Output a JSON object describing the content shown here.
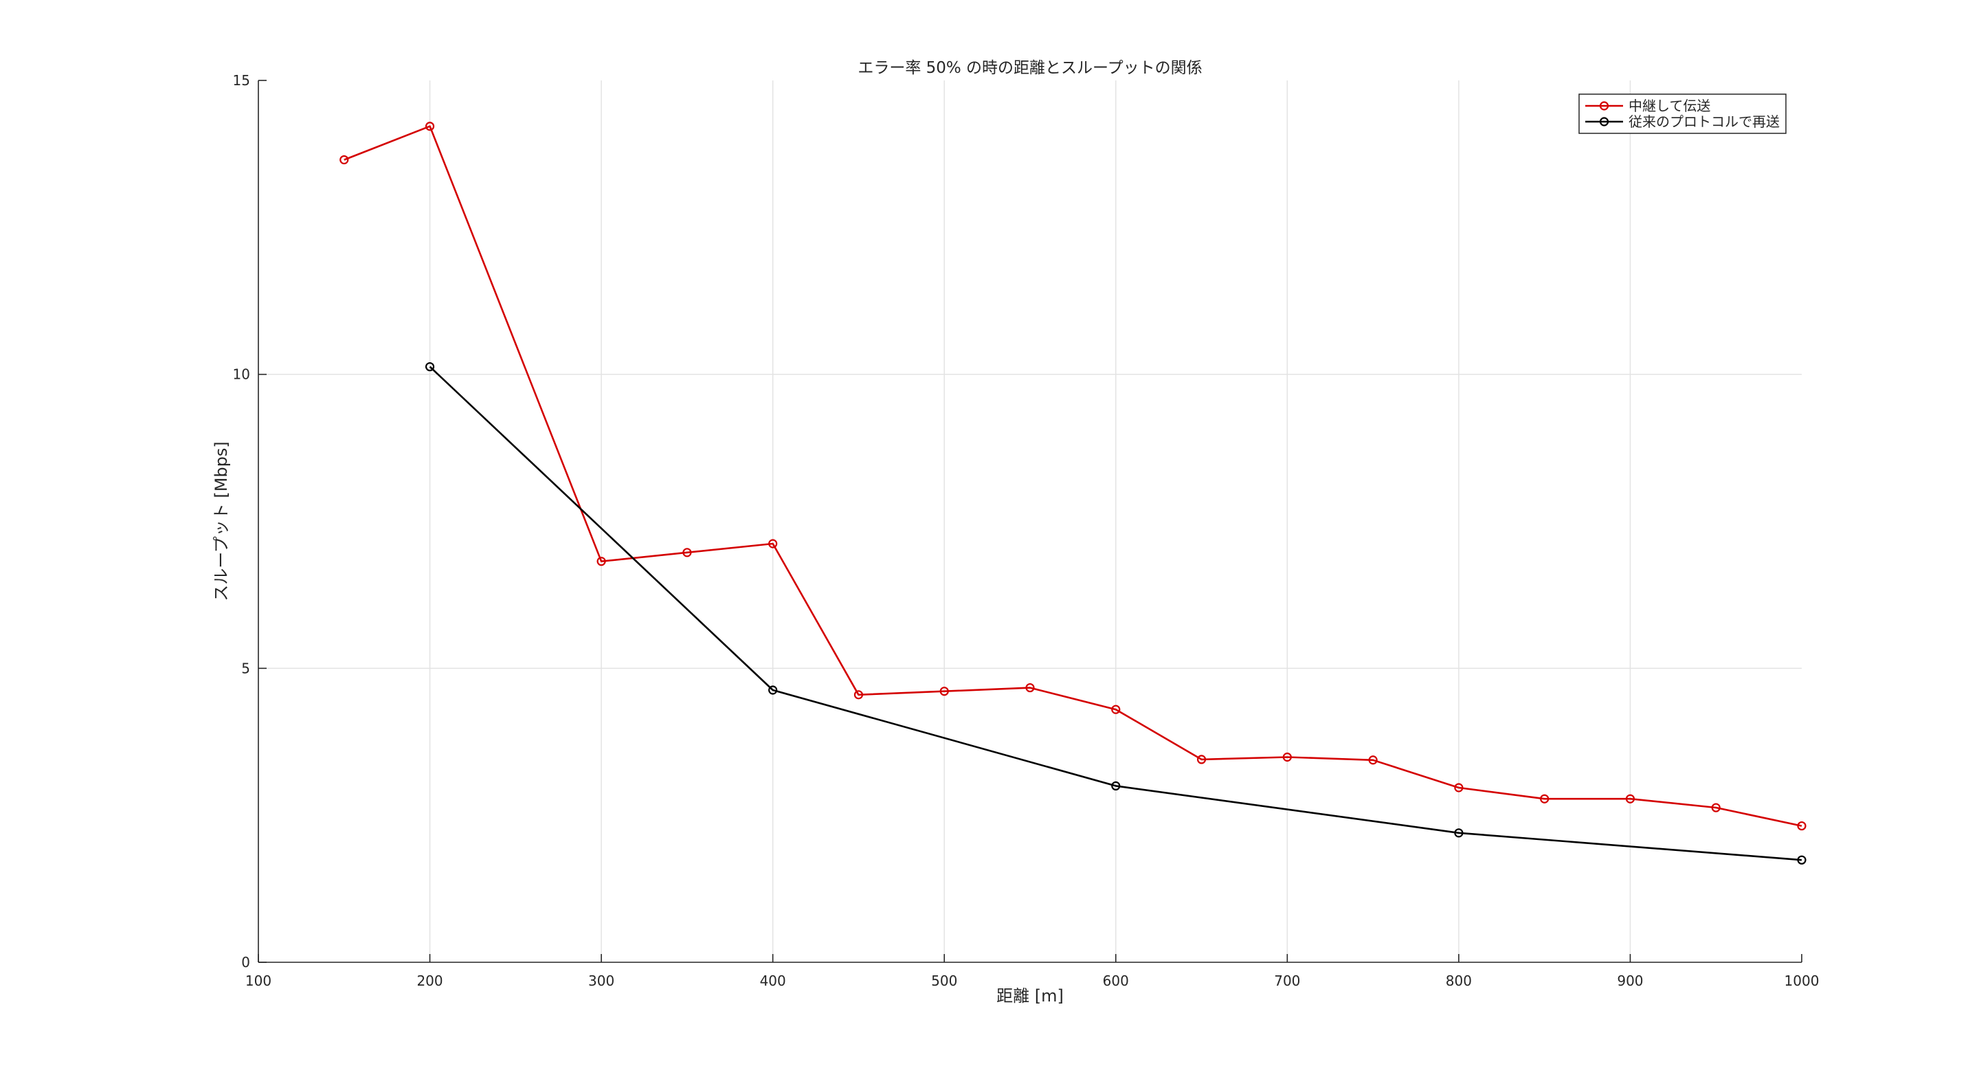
{
  "chart_data": {
    "type": "line",
    "title": "エラー率 50% の時の距離とスループットの関係",
    "xlabel": "距離 [m]",
    "ylabel": "スループット [Mbps]",
    "xlim": [
      100,
      1000
    ],
    "ylim": [
      0,
      15
    ],
    "xticks": [
      100,
      200,
      300,
      400,
      500,
      600,
      700,
      800,
      900,
      1000
    ],
    "yticks": [
      0,
      5,
      10,
      15
    ],
    "grid": true,
    "legend_position": "top-right",
    "series": [
      {
        "name": "中継して伝送",
        "color": "#d40000",
        "marker": "circle",
        "x": [
          150,
          200,
          300,
          350,
          400,
          450,
          500,
          550,
          600,
          650,
          700,
          750,
          800,
          850,
          900,
          950,
          1000
        ],
        "y": [
          13.65,
          14.22,
          6.82,
          6.97,
          7.12,
          4.55,
          4.61,
          4.67,
          4.3,
          3.45,
          3.49,
          3.44,
          2.97,
          2.78,
          2.78,
          2.63,
          2.32
        ]
      },
      {
        "name": "従来のプロトコルで再送",
        "color": "#000000",
        "marker": "circle",
        "x": [
          200,
          400,
          600,
          800,
          1000
        ],
        "y": [
          10.13,
          4.63,
          3.0,
          2.2,
          1.74
        ]
      }
    ]
  }
}
